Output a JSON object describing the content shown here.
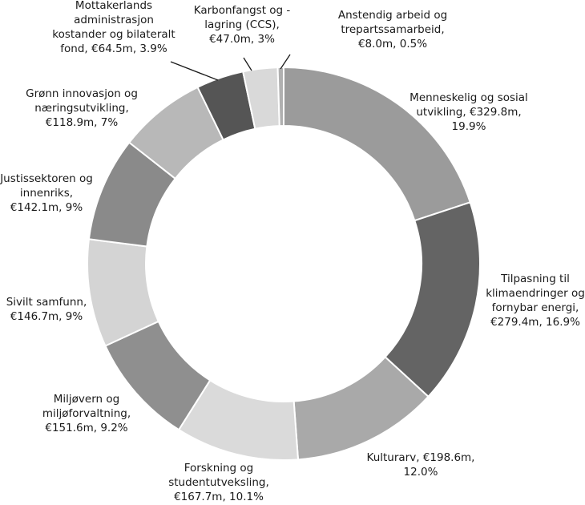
{
  "chart_data": {
    "type": "pie",
    "style": "donut",
    "title": "",
    "slices": [
      {
        "lines": [
          "Menneskelig og sosial",
          "utvikling, €329.8m,",
          "19.9%"
        ],
        "label": "Menneskelig og sosial",
        "value": 329.8,
        "percent": 19.9,
        "color": "#9b9b9b"
      },
      {
        "lines": [
          "Tilpasning til",
          "klimaendringer og",
          "fornybar energi,",
          "€279.4m, 16.9%"
        ],
        "label": "Tilpasning til klimaendringer og fornybar energi",
        "value": 279.4,
        "percent": 16.9,
        "color": "#646464"
      },
      {
        "lines": [
          "Kulturarv, €198.6m,",
          "12.0%"
        ],
        "label": "Kulturarv",
        "value": 198.6,
        "percent": 12.0,
        "color": "#a9a9a9"
      },
      {
        "lines": [
          "Forskning og",
          "studentutveksling,",
          "€167.7m, 10.1%"
        ],
        "label": "Forskning og studentutveksling",
        "value": 167.7,
        "percent": 10.1,
        "color": "#dadada"
      },
      {
        "lines": [
          "Miljøvern og",
          "miljøforvaltning,",
          "€151.6m, 9.2%"
        ],
        "label": "Miljøvern og miljøforvaltning",
        "value": 151.6,
        "percent": 9.2,
        "color": "#8f8f8f"
      },
      {
        "lines": [
          "Sivilt samfunn,",
          "€146.7m, 9%"
        ],
        "label": "Sivilt samfunn",
        "value": 146.7,
        "percent": 9,
        "color": "#d4d4d4"
      },
      {
        "lines": [
          "Justissektoren og",
          "innenriks,",
          "€142.1m, 9%"
        ],
        "label": "Justissektoren og innenriks",
        "value": 142.1,
        "percent": 9,
        "color": "#8a8a8a"
      },
      {
        "lines": [
          "Grønn innovasjon og",
          "næringsutvikling,",
          "€118.9m, 7%"
        ],
        "label": "Grønn innovasjon og næringsutvikling",
        "value": 118.9,
        "percent": 7,
        "color": "#b8b8b8"
      },
      {
        "lines": [
          "Mottakerlands",
          "administrasjon",
          "kostander og bilateralt",
          "fond, €64.5m, 3.9%"
        ],
        "label": "Mottakerlands administrasjon kostander og bilateralt fond",
        "value": 64.5,
        "percent": 3.9,
        "color": "#555555"
      },
      {
        "lines": [
          "Karbonfangst og -",
          "lagring (CCS),",
          "€47.0m, 3%"
        ],
        "label": "Karbonfangst og -lagring (CCS)",
        "value": 47.0,
        "percent": 3,
        "color": "#d9d9d9"
      },
      {
        "lines": [
          "Anstendig arbeid og",
          "trepartssamarbeid,",
          "€8.0m, 0.5%"
        ],
        "label": "Anstendig arbeid og trepartssamarbeid",
        "value": 8.0,
        "percent": 0.5,
        "color": "#b0b0b0"
      }
    ]
  }
}
